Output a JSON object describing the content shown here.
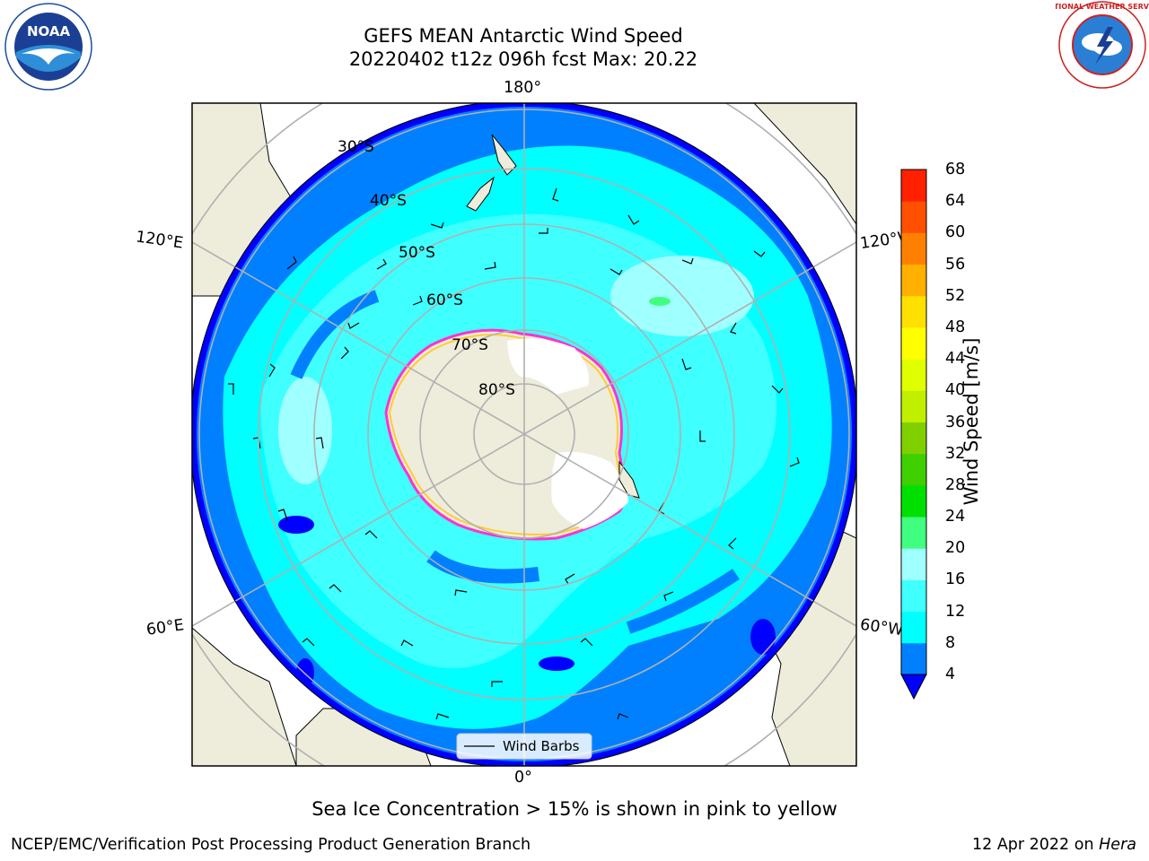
{
  "header": {
    "title_line1": "GEFS MEAN Antarctic Wind Speed",
    "title_line2": "20220402 t12z 096h fcst   Max: 20.22"
  },
  "logos": {
    "noaa_text": "NOAA",
    "nws_text": "NATIONAL WEATHER SERVICE"
  },
  "map": {
    "projection": "south-polar-stereographic",
    "lon_labels": {
      "top": "180°",
      "bottom": "0°",
      "left_upper": "120°E",
      "right_upper": "120°W",
      "left_lower": "60°E",
      "right_lower": "60°W"
    },
    "lat_labels": [
      "30°S",
      "40°S",
      "50°S",
      "60°S",
      "70°S",
      "80°S"
    ],
    "legend_label": "Wind Barbs",
    "colors": {
      "land": "#eeecdb",
      "ice_land": "#ffffff",
      "ice_edge_pink": "#ff33cc",
      "ice_edge_yellow": "#ffcc33",
      "grid": "#b0b0b0"
    }
  },
  "colorbar": {
    "title": "Wind Speed [m/s]",
    "ticks": [
      "4",
      "8",
      "12",
      "16",
      "20",
      "24",
      "28",
      "32",
      "36",
      "40",
      "44",
      "48",
      "52",
      "56",
      "60",
      "64",
      "68"
    ],
    "under_color": "#0000ff",
    "colors": [
      "#0080ff",
      "#00ffff",
      "#40ffff",
      "#a0ffff",
      "#40ff80",
      "#00e000",
      "#40d000",
      "#80d000",
      "#c0f000",
      "#e0ff00",
      "#ffff00",
      "#ffe000",
      "#ffb000",
      "#ff8000",
      "#ff5000",
      "#ff2000",
      "#ff0000"
    ]
  },
  "footer": {
    "note": "Sea Ice Concentration > 15% is shown in pink to yellow",
    "credit": "NCEP/EMC/Verification Post Processing Product Generation Branch",
    "date_prefix": "12 Apr 2022 on",
    "machine": "Hera"
  }
}
